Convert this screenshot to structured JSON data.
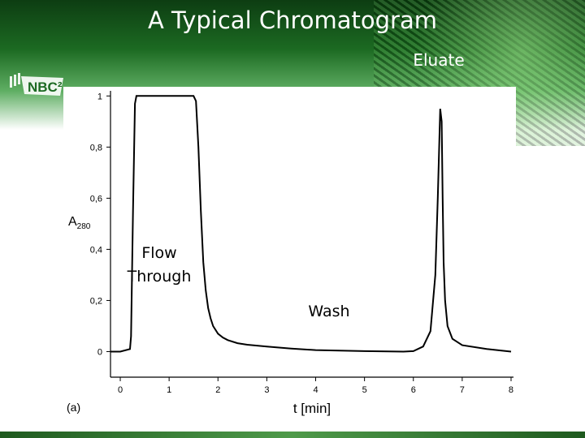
{
  "slide": {
    "title": "A Typical Chromatogram",
    "logo_text": "NBC²",
    "colors": {
      "banner_dark": "#0d3d12",
      "banner_light": "#5fae63",
      "trace": "#000000"
    }
  },
  "annotations": {
    "eluate": "Eluate",
    "flow_through": "Flow\nThrough",
    "wash": "Wash"
  },
  "chart_data": {
    "type": "line",
    "panel_label": "(a)",
    "ylabel_main": "A",
    "ylabel_sub": "280",
    "xlabel": "t [min]",
    "xlim": [
      -0.2,
      8.05
    ],
    "ylim": [
      -0.1,
      1.02
    ],
    "xticks": [
      "0",
      "1",
      "2",
      "3",
      "4",
      "5",
      "6",
      "7",
      "8"
    ],
    "yticks": [
      "0",
      "0,2",
      "0,4",
      "0,6",
      "0,8",
      "1"
    ],
    "ytick_values": [
      0,
      0.2,
      0.4,
      0.6,
      0.8,
      1
    ],
    "grid": false,
    "series": [
      {
        "x": [
          -0.2,
          0.0,
          0.2,
          0.22,
          0.26,
          0.3,
          0.33,
          1.5,
          1.55,
          1.6,
          1.65,
          1.7,
          1.75,
          1.8,
          1.85,
          1.9,
          2.0,
          2.1,
          2.2,
          2.4,
          2.6,
          3.0,
          3.5,
          4.0,
          5.0,
          5.8,
          6.0,
          6.2,
          6.35,
          6.45,
          6.5,
          6.55,
          6.58,
          6.6,
          6.62,
          6.65,
          6.7,
          6.8,
          7.0,
          7.5,
          8.0
        ],
        "y": [
          0.0,
          0.0,
          0.01,
          0.06,
          0.55,
          0.97,
          1.0,
          1.0,
          0.98,
          0.8,
          0.55,
          0.35,
          0.24,
          0.17,
          0.13,
          0.1,
          0.07,
          0.055,
          0.045,
          0.033,
          0.027,
          0.02,
          0.012,
          0.006,
          0.002,
          0.0,
          0.002,
          0.02,
          0.08,
          0.3,
          0.6,
          0.95,
          0.9,
          0.6,
          0.35,
          0.2,
          0.1,
          0.05,
          0.025,
          0.01,
          0.0
        ]
      }
    ]
  }
}
